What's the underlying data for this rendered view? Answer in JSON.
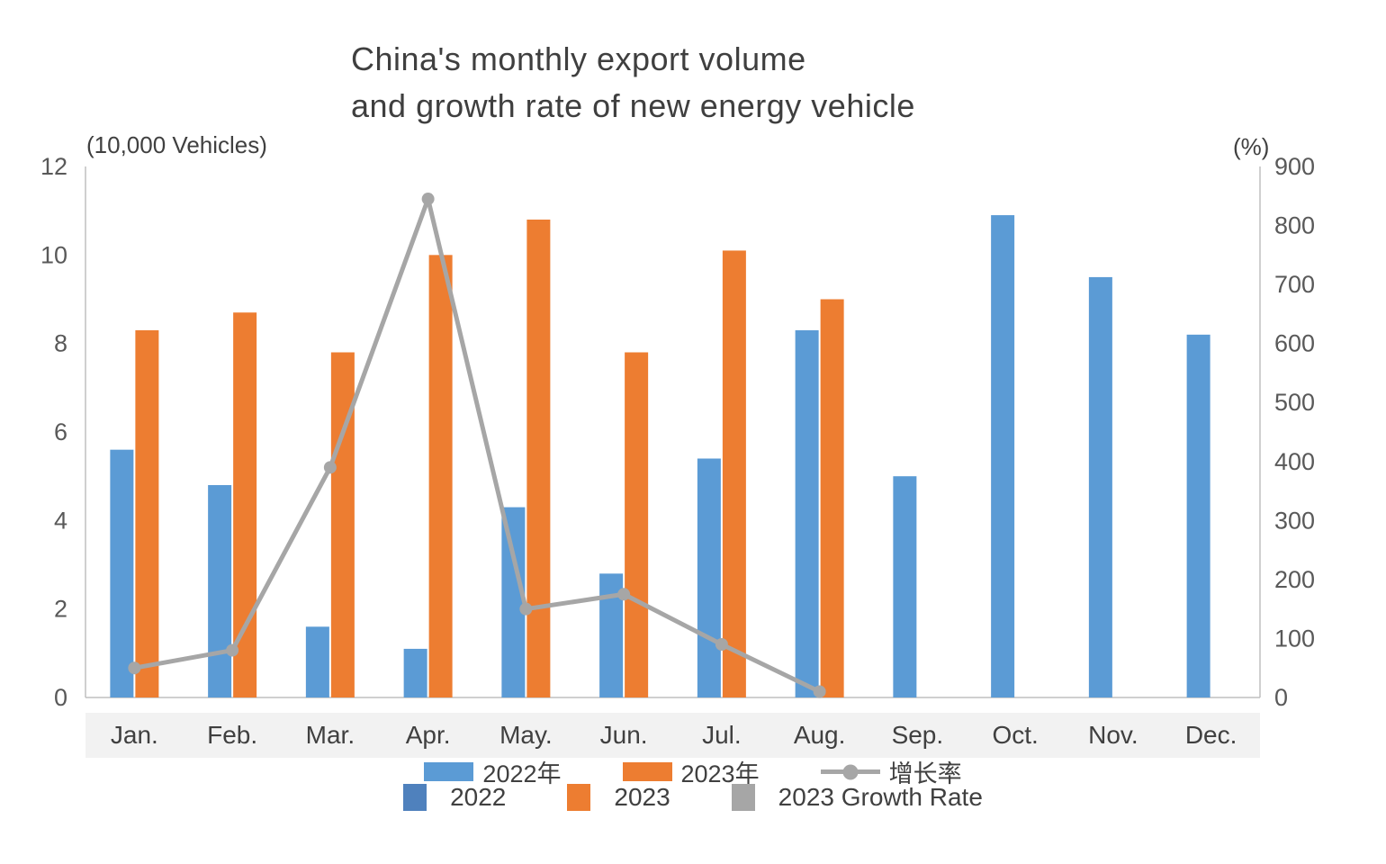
{
  "title": {
    "line1": "China's monthly export volume",
    "line2": "and growth rate of new energy vehicle"
  },
  "axes": {
    "left_unit_label": "(10,000 Vehicles)",
    "right_unit_label": "(%)",
    "left_ticks": [
      0,
      2,
      4,
      6,
      8,
      10,
      12
    ],
    "right_ticks": [
      0,
      100,
      200,
      300,
      400,
      500,
      600,
      700,
      800,
      900
    ]
  },
  "legend": {
    "row_cn": [
      {
        "label": "2022年",
        "color": "#5B9BD5",
        "type": "bar"
      },
      {
        "label": "2023年",
        "color": "#ED7D31",
        "type": "bar"
      },
      {
        "label": "增长率",
        "color": "#A6A6A6",
        "type": "line"
      }
    ],
    "row_en": [
      {
        "label": "2022",
        "color": "#4F81BD",
        "type": "square"
      },
      {
        "label": "2023",
        "color": "#ED7D31",
        "type": "square"
      },
      {
        "label": "2023 Growth Rate",
        "color": "#A6A6A6",
        "type": "square"
      }
    ]
  },
  "chart_data": {
    "type": "bar",
    "subtype": "grouped bars with secondary-axis line",
    "title": "China's monthly export volume and growth rate of new energy vehicle",
    "categories": [
      "Jan.",
      "Feb.",
      "Mar.",
      "Apr.",
      "May.",
      "Jun.",
      "Jul.",
      "Aug.",
      "Sep.",
      "Oct.",
      "Nov.",
      "Dec."
    ],
    "series": [
      {
        "name": "2022年",
        "type": "bar",
        "axis": "left",
        "color": "#5B9BD5",
        "values": [
          5.6,
          4.8,
          1.6,
          1.1,
          4.3,
          2.8,
          5.4,
          8.3,
          5.0,
          10.9,
          9.5,
          8.2
        ]
      },
      {
        "name": "2023年",
        "type": "bar",
        "axis": "left",
        "color": "#ED7D31",
        "values": [
          8.3,
          8.7,
          7.8,
          10.0,
          10.8,
          7.8,
          10.1,
          9.0,
          null,
          null,
          null,
          null
        ]
      },
      {
        "name": "增长率",
        "type": "line",
        "axis": "right",
        "color": "#A6A6A6",
        "values": [
          50,
          80,
          390,
          845,
          150,
          175,
          90,
          10,
          null,
          null,
          null,
          null
        ]
      }
    ],
    "left_axis": {
      "label": "(10,000 Vehicles)",
      "range": [
        0,
        12
      ],
      "tick_step": 2
    },
    "right_axis": {
      "label": "(%)",
      "range": [
        0,
        900
      ],
      "tick_step": 100
    },
    "grid": false,
    "legend_position": "bottom"
  }
}
